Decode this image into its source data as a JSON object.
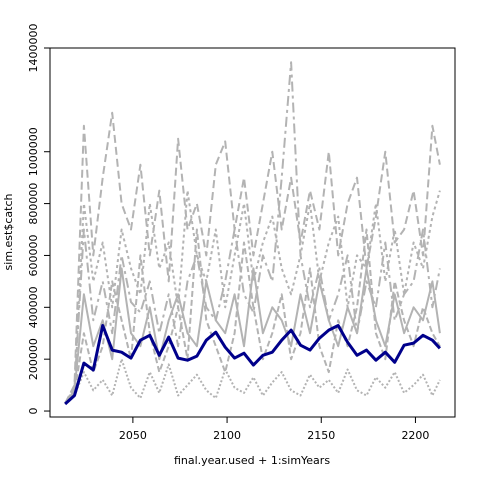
{
  "chart_data": {
    "type": "line",
    "x_label": "final.year.used + 1:simYears",
    "y_label": "sim.est$catch",
    "x": [
      2014,
      2019,
      2024,
      2029,
      2034,
      2039,
      2044,
      2049,
      2054,
      2059,
      2064,
      2069,
      2074,
      2079,
      2084,
      2089,
      2094,
      2099,
      2104,
      2109,
      2114,
      2119,
      2124,
      2129,
      2134,
      2139,
      2144,
      2149,
      2154,
      2159,
      2164,
      2169,
      2174,
      2179,
      2184,
      2189,
      2194,
      2199,
      2204,
      2209,
      2213
    ],
    "xlim": [
      2006,
      2221
    ],
    "xticks": [
      2050,
      2100,
      2150,
      2200
    ],
    "ylim": [
      -23000,
      1400000
    ],
    "yticks": [
      0,
      200000,
      400000,
      600000,
      800000,
      1000000,
      1400000
    ],
    "series": [
      {
        "color": "#b3b3b3",
        "values": [
          30000,
          100000,
          1100000,
          600000,
          900000,
          1150000,
          800000,
          700000,
          950000,
          600000,
          850000,
          500000,
          1050000,
          700000,
          800000,
          600000,
          950000,
          1040000,
          700000,
          900000,
          600000,
          800000,
          1000000,
          700000,
          900000,
          650000,
          850000,
          700000,
          1000000,
          600000,
          800000,
          900000,
          550000,
          750000,
          1000000,
          650000,
          700000,
          850000,
          600000,
          1100000,
          950000
        ]
      },
      {
        "color": "#b3b3b3",
        "values": [
          30000,
          90000,
          800000,
          500000,
          650000,
          400000,
          700000,
          550000,
          450000,
          800000,
          550000,
          650000,
          400000,
          850000,
          600000,
          500000,
          700000,
          400000,
          600000,
          800000,
          500000,
          650000,
          750000,
          550000,
          450000,
          600000,
          800000,
          500000,
          650000,
          750000,
          400000,
          600000,
          550000,
          800000,
          500000,
          700000,
          450000,
          650000,
          550000,
          750000,
          850000
        ]
      },
      {
        "color": "#b3b3b3",
        "values": [
          30000,
          90000,
          700000,
          350000,
          500000,
          300000,
          600000,
          420000,
          380000,
          500000,
          300000,
          450000,
          250000,
          500000,
          600000,
          400000,
          350000,
          500000,
          700000,
          450000,
          380000,
          600000,
          500000,
          900000,
          1345000,
          600000,
          400000,
          550000,
          350000,
          450000,
          600000,
          300000,
          500000,
          400000,
          650000,
          350000,
          450000,
          500000,
          700000,
          400000,
          550000
        ]
      },
      {
        "color": "#b3b3b3",
        "values": [
          30000,
          80000,
          450000,
          250000,
          350000,
          200000,
          550000,
          300000,
          250000,
          400000,
          200000,
          350000,
          450000,
          300000,
          250000,
          500000,
          350000,
          300000,
          450000,
          250000,
          550000,
          300000,
          400000,
          350000,
          250000,
          450000,
          300000,
          500000,
          350000,
          250000,
          400000,
          300000,
          550000,
          350000,
          250000,
          450000,
          300000,
          400000,
          350000,
          500000,
          300000
        ]
      },
      {
        "color": "#b3b3b3",
        "values": [
          30000,
          70000,
          300000,
          150000,
          250000,
          500000,
          350000,
          200000,
          600000,
          300000,
          150000,
          250000,
          400000,
          200000,
          700000,
          350000,
          250000,
          150000,
          300000,
          650000,
          400000,
          200000,
          300000,
          450000,
          200000,
          300000,
          550000,
          250000,
          150000,
          350000,
          250000,
          400000,
          700000,
          300000,
          200000,
          500000,
          350000,
          250000,
          400000,
          300000,
          250000
        ]
      },
      {
        "color": "#b3b3b3",
        "values": [
          30000,
          60000,
          150000,
          80000,
          120000,
          60000,
          200000,
          90000,
          50000,
          150000,
          70000,
          180000,
          60000,
          100000,
          140000,
          80000,
          50000,
          160000,
          90000,
          70000,
          130000,
          60000,
          110000,
          150000,
          80000,
          60000,
          140000,
          90000,
          120000,
          70000,
          160000,
          80000,
          60000,
          130000,
          90000,
          150000,
          70000,
          100000,
          140000,
          60000,
          120000
        ]
      },
      {
        "color": "#00008b",
        "values": [
          27000,
          60000,
          185000,
          158000,
          330000,
          235000,
          227000,
          204000,
          273000,
          292000,
          215000,
          285000,
          204000,
          196000,
          212000,
          273000,
          304000,
          246000,
          204000,
          223000,
          177000,
          215000,
          227000,
          273000,
          312000,
          254000,
          235000,
          281000,
          312000,
          330000,
          265000,
          215000,
          235000,
          196000,
          227000,
          188000,
          254000,
          262000,
          292000,
          273000,
          242000
        ]
      }
    ]
  }
}
